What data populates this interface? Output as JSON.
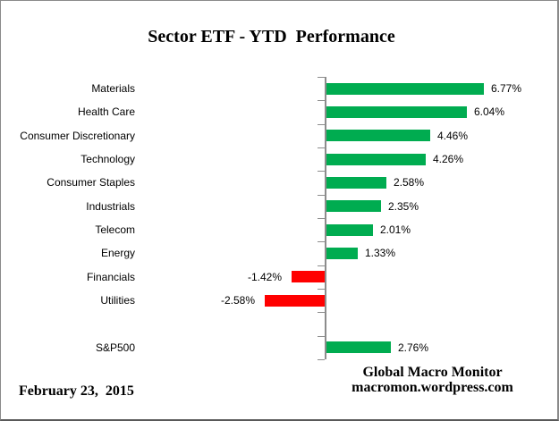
{
  "header": {
    "title": "Sector ETF - YTD  Performance"
  },
  "footer": {
    "date": "February 23,  2015",
    "source_line1": "Global Macro Monitor",
    "source_line2": "macromon.wordpress.com"
  },
  "chart_data": {
    "type": "bar",
    "orientation": "horizontal",
    "title": "Sector ETF - YTD Performance",
    "xlabel": "",
    "ylabel": "",
    "grid": false,
    "legend": false,
    "value_unit": "%",
    "xlim": [
      -3.5,
      8.5
    ],
    "categories": [
      "Materials",
      "Health Care",
      "Consumer Discretionary",
      "Technology",
      "Consumer Staples",
      "Industrials",
      "Telecom",
      "Energy",
      "Financials",
      "Utilities",
      "",
      "S&P500"
    ],
    "values": [
      6.77,
      6.04,
      4.46,
      4.26,
      2.58,
      2.35,
      2.01,
      1.33,
      -1.42,
      -2.58,
      null,
      2.76
    ],
    "data_labels": [
      "6.77%",
      "6.04%",
      "4.46%",
      "4.26%",
      "2.58%",
      "2.35%",
      "2.01%",
      "1.33%",
      "-1.42%",
      "-2.58%",
      "",
      "2.76%"
    ],
    "colors": {
      "positive": "#00AC50",
      "negative": "#FF0000",
      "axis": "#8C8C8C"
    },
    "axis": {
      "side": "left-of-bars",
      "tick_count": 13,
      "ticks_outside": true
    }
  }
}
